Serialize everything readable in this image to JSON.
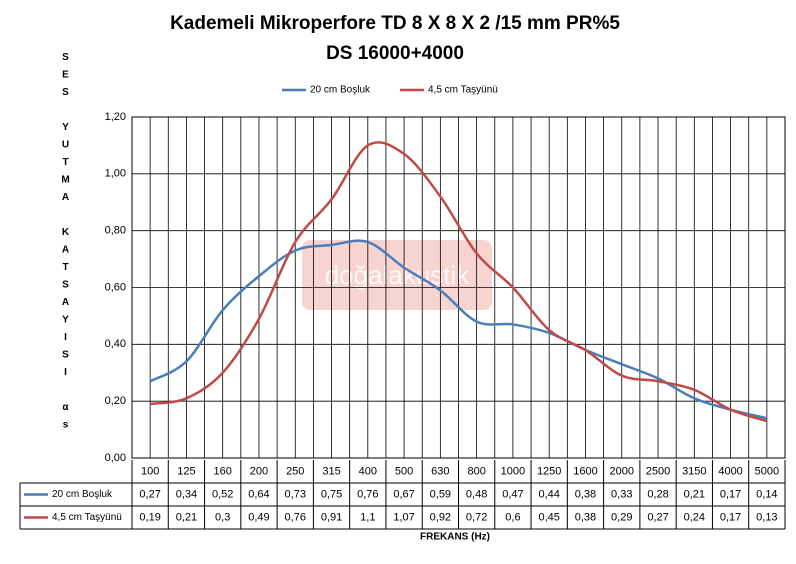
{
  "chart_data": {
    "type": "line",
    "title": "Kademeli Mikroperfore TD 8 X 8 X 2 /15 mm PR%5",
    "subtitle": "DS 16000+4000",
    "y_label": "SES YUTMA KATSAYISI αs",
    "x_label": "FREKANS (Hz)",
    "watermark": "doğalakustik",
    "categories": [
      "100",
      "125",
      "160",
      "200",
      "250",
      "315",
      "400",
      "500",
      "630",
      "800",
      "1000",
      "1250",
      "1600",
      "2000",
      "2500",
      "3150",
      "4000",
      "5000"
    ],
    "series": [
      {
        "name": "20 cm Boşluk",
        "color": "#4a7ebb",
        "values": [
          0.27,
          0.34,
          0.52,
          0.64,
          0.73,
          0.75,
          0.76,
          0.67,
          0.59,
          0.48,
          0.47,
          0.44,
          0.38,
          0.33,
          0.28,
          0.21,
          0.17,
          0.14
        ],
        "value_labels": [
          "0,27",
          "0,34",
          "0,52",
          "0,64",
          "0,73",
          "0,75",
          "0,76",
          "0,67",
          "0,59",
          "0,48",
          "0,47",
          "0,44",
          "0,38",
          "0,33",
          "0,28",
          "0,21",
          "0,17",
          "0,14"
        ]
      },
      {
        "name": "4,5 cm Taşyünü",
        "color": "#be4b48",
        "values": [
          0.19,
          0.21,
          0.3,
          0.49,
          0.76,
          0.91,
          1.1,
          1.07,
          0.92,
          0.72,
          0.6,
          0.45,
          0.38,
          0.29,
          0.27,
          0.24,
          0.17,
          0.13
        ],
        "value_labels": [
          "0,19",
          "0,21",
          "0,3",
          "0,49",
          "0,76",
          "0,91",
          "1,1",
          "1,07",
          "0,92",
          "0,72",
          "0,6",
          "0,45",
          "0,38",
          "0,29",
          "0,27",
          "0,24",
          "0,17",
          "0,13"
        ]
      }
    ],
    "ylim": [
      0,
      1.2
    ],
    "yticks": [
      {
        "value": 0,
        "label": "0,00"
      },
      {
        "value": 0.2,
        "label": "0,20"
      },
      {
        "value": 0.4,
        "label": "0,40"
      },
      {
        "value": 0.6,
        "label": "0,60"
      },
      {
        "value": 0.8,
        "label": "0,80"
      },
      {
        "value": 1.0,
        "label": "1,00"
      },
      {
        "value": 1.2,
        "label": "1,20"
      }
    ],
    "grid": true,
    "legend": "top"
  }
}
